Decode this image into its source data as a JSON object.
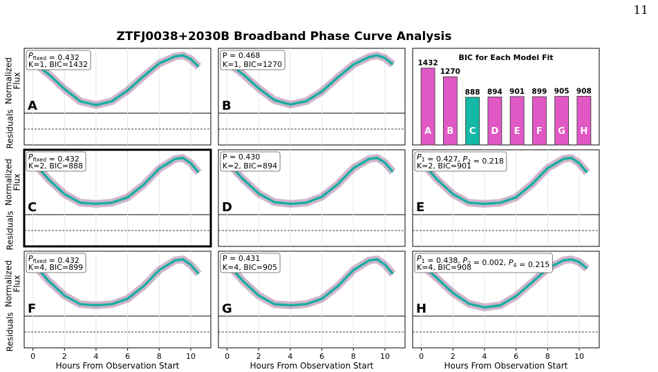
{
  "page_number": "11",
  "figure_title": "ZTFJ0038+2030B Broadband Phase Curve Analysis",
  "chart_data": [
    {
      "type": "line",
      "label": "A",
      "ylabel": [
        "Normalized",
        "Flux"
      ],
      "residual_ylabel": "Residuals",
      "annotation": [
        [
          {
            "text": "P",
            "sub": "fixed"
          },
          {
            "text": " = 0.432"
          }
        ],
        "K=1, BIC=1432"
      ],
      "x": [
        0,
        1,
        2,
        3,
        4,
        5,
        6,
        7,
        8,
        9,
        9.5,
        10,
        10.5
      ],
      "xlim": [
        -0.55,
        11.27
      ],
      "ylim": [
        -0.1,
        1.1
      ],
      "grid": true,
      "scatter_color": "#7b2a6b",
      "series": [
        {
          "color": "#19aea2",
          "values": [
            0.85,
            0.62,
            0.35,
            0.12,
            0.05,
            0.12,
            0.32,
            0.58,
            0.82,
            0.95,
            0.97,
            0.9,
            0.76
          ]
        }
      ]
    },
    {
      "type": "line",
      "label": "B",
      "annotation": [
        [
          {
            "text": "P"
          },
          {
            "text": " = 0.468"
          }
        ],
        "K=1, BIC=1270"
      ],
      "x": [
        0,
        1,
        2,
        3,
        4,
        5,
        6,
        7,
        8,
        9,
        9.5,
        10,
        10.5
      ],
      "xlim": [
        -0.55,
        11.27
      ],
      "ylim": [
        -0.1,
        1.1
      ],
      "grid": true,
      "scatter_color": "#7b2a6b",
      "series": [
        {
          "color": "#19aea2",
          "values": [
            0.85,
            0.62,
            0.36,
            0.14,
            0.06,
            0.12,
            0.3,
            0.56,
            0.8,
            0.94,
            0.97,
            0.92,
            0.8
          ]
        }
      ]
    },
    {
      "type": "bar",
      "title": "BIC for Each Model Fit",
      "categories": [
        "A",
        "B",
        "C",
        "D",
        "E",
        "F",
        "G",
        "H"
      ],
      "values": [
        1432,
        1270,
        888,
        894,
        901,
        899,
        905,
        908
      ],
      "colors": [
        "#e058c4",
        "#e058c4",
        "#14b8a6",
        "#e058c4",
        "#e058c4",
        "#e058c4",
        "#e058c4",
        "#e058c4"
      ],
      "ylim": [
        0,
        1800
      ]
    },
    {
      "type": "line",
      "label": "C",
      "ylabel": [
        "Normalized",
        "Flux"
      ],
      "residual_ylabel": "Residuals",
      "highlight": true,
      "annotation": [
        [
          {
            "text": "P",
            "sub": "fixed"
          },
          {
            "text": " = 0.432"
          }
        ],
        "K=2, BIC=888"
      ],
      "x": [
        0,
        1,
        2,
        3,
        4,
        5,
        6,
        7,
        8,
        9,
        9.5,
        10,
        10.5
      ],
      "xlim": [
        -0.55,
        11.27
      ],
      "ylim": [
        -0.1,
        1.1
      ],
      "grid": true,
      "scatter_color": "#7b2a6b",
      "series": [
        {
          "color": "#19aea2",
          "values": [
            0.88,
            0.55,
            0.28,
            0.12,
            0.1,
            0.12,
            0.22,
            0.45,
            0.75,
            0.93,
            0.95,
            0.85,
            0.68
          ]
        }
      ]
    },
    {
      "type": "line",
      "label": "D",
      "annotation": [
        [
          {
            "text": "P"
          },
          {
            "text": " = 0.430"
          }
        ],
        "K=2, BIC=894"
      ],
      "x": [
        0,
        1,
        2,
        3,
        4,
        5,
        6,
        7,
        8,
        9,
        9.5,
        10,
        10.5
      ],
      "xlim": [
        -0.55,
        11.27
      ],
      "ylim": [
        -0.1,
        1.1
      ],
      "grid": true,
      "scatter_color": "#7b2a6b",
      "series": [
        {
          "color": "#19aea2",
          "values": [
            0.88,
            0.56,
            0.29,
            0.13,
            0.1,
            0.12,
            0.23,
            0.46,
            0.76,
            0.93,
            0.95,
            0.86,
            0.69
          ]
        }
      ]
    },
    {
      "type": "line",
      "label": "E",
      "annotation": [
        [
          {
            "text": "P",
            "sub": "1"
          },
          {
            "text": " = 0.427, "
          },
          {
            "text": "P",
            "sub": "2"
          },
          {
            "text": " = 0.218"
          }
        ],
        "K=2, BIC=901"
      ],
      "x": [
        0,
        1,
        2,
        3,
        4,
        5,
        6,
        7,
        8,
        9,
        9.5,
        10,
        10.5
      ],
      "xlim": [
        -0.55,
        11.27
      ],
      "ylim": [
        -0.1,
        1.1
      ],
      "grid": true,
      "scatter_color": "#7b2a6b",
      "series": [
        {
          "color": "#19aea2",
          "values": [
            0.88,
            0.55,
            0.28,
            0.12,
            0.1,
            0.12,
            0.22,
            0.46,
            0.76,
            0.93,
            0.95,
            0.85,
            0.68
          ]
        }
      ]
    },
    {
      "type": "line",
      "label": "F",
      "ylabel": [
        "Normalized",
        "Flux"
      ],
      "residual_ylabel": "Residuals",
      "xlabel": "Hours From Observation Start",
      "xticks": [
        0,
        2,
        4,
        6,
        8,
        10
      ],
      "annotation": [
        [
          {
            "text": "P",
            "sub": "fixed"
          },
          {
            "text": " = 0.432"
          }
        ],
        "K=4, BIC=899"
      ],
      "x": [
        0,
        1,
        2,
        3,
        4,
        5,
        6,
        7,
        8,
        9,
        9.5,
        10,
        10.5
      ],
      "xlim": [
        -0.55,
        11.27
      ],
      "ylim": [
        -0.1,
        1.1
      ],
      "grid": true,
      "scatter_color": "#7b2a6b",
      "series": [
        {
          "color": "#19aea2",
          "values": [
            0.88,
            0.55,
            0.28,
            0.12,
            0.1,
            0.12,
            0.22,
            0.45,
            0.75,
            0.93,
            0.95,
            0.85,
            0.68
          ]
        }
      ]
    },
    {
      "type": "line",
      "label": "G",
      "xlabel": "Hours From Observation Start",
      "xticks": [
        0,
        2,
        4,
        6,
        8,
        10
      ],
      "annotation": [
        [
          {
            "text": "P"
          },
          {
            "text": " = 0.431"
          }
        ],
        "K=4, BIC=905"
      ],
      "x": [
        0,
        1,
        2,
        3,
        4,
        5,
        6,
        7,
        8,
        9,
        9.5,
        10,
        10.5
      ],
      "xlim": [
        -0.55,
        11.27
      ],
      "ylim": [
        -0.1,
        1.1
      ],
      "grid": true,
      "scatter_color": "#7b2a6b",
      "series": [
        {
          "color": "#19aea2",
          "values": [
            0.88,
            0.55,
            0.28,
            0.12,
            0.1,
            0.12,
            0.22,
            0.45,
            0.75,
            0.93,
            0.95,
            0.85,
            0.68
          ]
        }
      ]
    },
    {
      "type": "line",
      "label": "H",
      "xlabel": "Hours From Observation Start",
      "xticks": [
        0,
        2,
        4,
        6,
        8,
        10
      ],
      "annotation": [
        [
          {
            "text": "P",
            "sub": "1"
          },
          {
            "text": " = 0.438, "
          },
          {
            "text": "P",
            "sub": "2"
          },
          {
            "text": " = 0.002, "
          },
          {
            "text": "P",
            "sub": "4"
          },
          {
            "text": " = 0.215"
          }
        ],
        "K=4, BIC=908"
      ],
      "x": [
        0,
        1,
        2,
        3,
        4,
        5,
        6,
        7,
        8,
        9,
        9.5,
        10,
        10.5
      ],
      "xlim": [
        -0.55,
        11.27
      ],
      "ylim": [
        -0.1,
        1.1
      ],
      "grid": true,
      "scatter_color": "#7b2a6b",
      "series": [
        {
          "color": "#19aea2",
          "values": [
            0.85,
            0.6,
            0.33,
            0.13,
            0.06,
            0.1,
            0.27,
            0.52,
            0.78,
            0.93,
            0.95,
            0.9,
            0.78
          ]
        }
      ]
    }
  ]
}
